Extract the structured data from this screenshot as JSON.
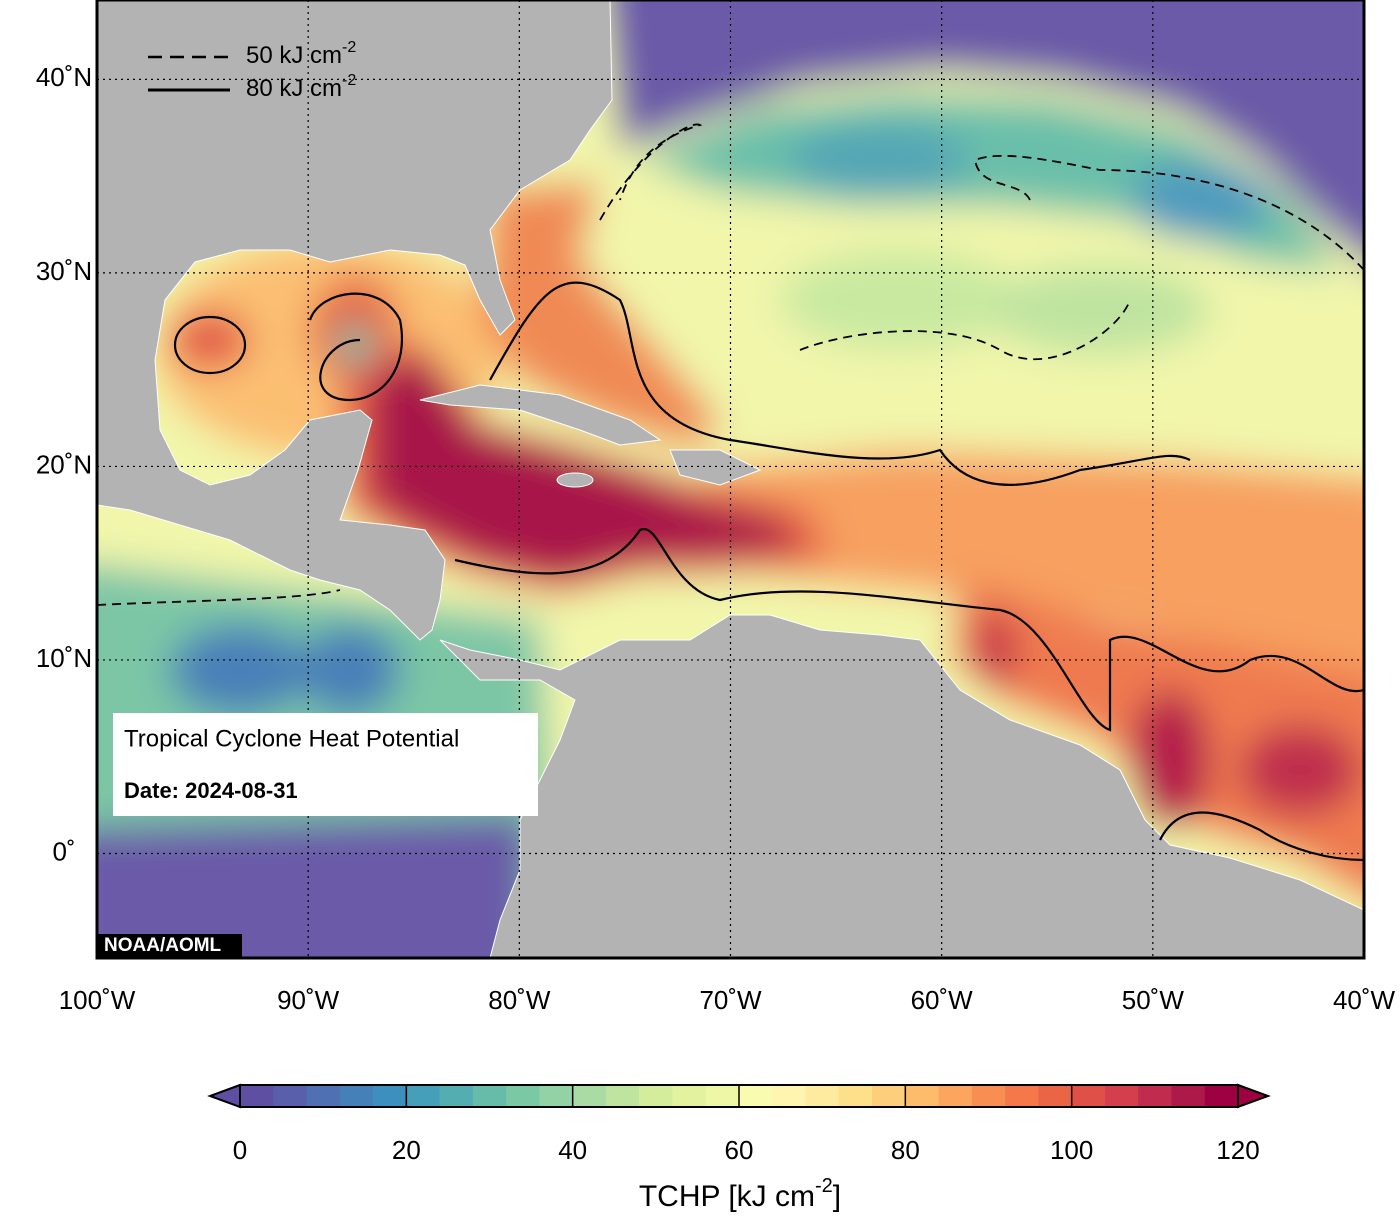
{
  "map": {
    "type": "map",
    "xlim": [
      -100,
      -40
    ],
    "ylim": [
      -5.4,
      44.1
    ],
    "xticks": [
      {
        "value": -100,
        "label": "100˚W"
      },
      {
        "value": -90,
        "label": "90˚W"
      },
      {
        "value": -80,
        "label": "80˚W"
      },
      {
        "value": -70,
        "label": "70˚W"
      },
      {
        "value": -60,
        "label": "60˚W"
      },
      {
        "value": -50,
        "label": "50˚W"
      },
      {
        "value": -40,
        "label": "40˚W"
      }
    ],
    "yticks": [
      {
        "value": 0,
        "label": "0˚"
      },
      {
        "value": 10,
        "label": "10˚N"
      },
      {
        "value": 20,
        "label": "20˚N"
      },
      {
        "value": 30,
        "label": "30˚N"
      },
      {
        "value": 40,
        "label": "40˚N"
      }
    ],
    "grid": true,
    "legend": [
      {
        "label": "50 kJ cm",
        "sup": "-2",
        "style": "dashed"
      },
      {
        "label": "80 kJ cm",
        "sup": "-2",
        "style": "solid"
      }
    ],
    "info": {
      "title": "Tropical Cyclone Heat Potential",
      "date": "Date: 2024-08-31"
    },
    "credit": "NOAA/AOML"
  },
  "colorbar": {
    "lim": [
      0,
      120
    ],
    "ticks": [
      0,
      20,
      40,
      60,
      80,
      100,
      120
    ],
    "label": "TCHP [kJ cm",
    "label_sup": "-2",
    "label_end": "]",
    "colors": [
      "#5e4fa2",
      "#5a5fab",
      "#4f70b2",
      "#4580b8",
      "#3d90bd",
      "#459fb8",
      "#54aeb1",
      "#66bca9",
      "#7bc8a4",
      "#92d2a4",
      "#aadba4",
      "#bfe4a0",
      "#d3ed9c",
      "#e2f29f",
      "#eef7a6",
      "#f9fbb1",
      "#fff5b0",
      "#feeb9f",
      "#fee08b",
      "#fdce7b",
      "#fdbb6c",
      "#fca55f",
      "#f98e52",
      "#f47849",
      "#ea6446",
      "#df5148",
      "#d33f4d",
      "#c12b4d",
      "#ad1a4a",
      "#9e0142"
    ]
  }
}
